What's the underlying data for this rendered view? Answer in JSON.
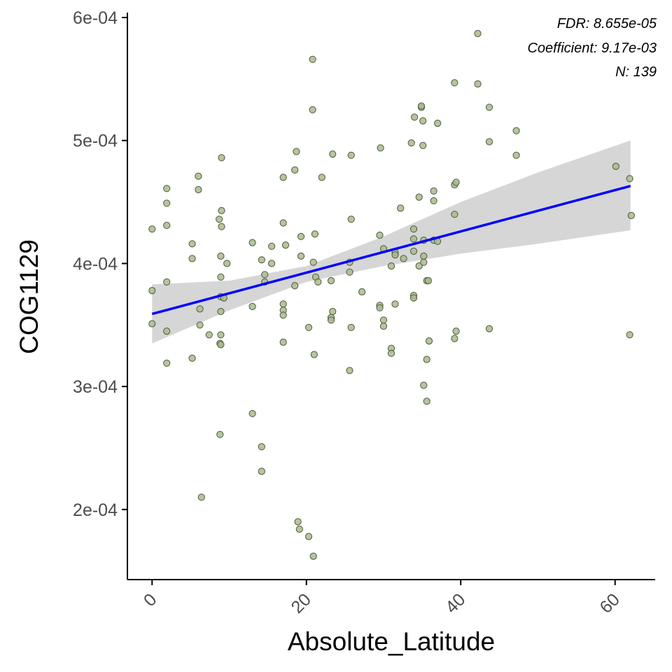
{
  "chart_data": {
    "type": "scatter",
    "title": "",
    "xlabel": "Absolute_Latitude",
    "ylabel": "COG1129",
    "xlim": [
      -3.2,
      65.2
    ],
    "ylim": [
      0.000143,
      0.000604
    ],
    "x_ticks": [
      0,
      20,
      40,
      60
    ],
    "x_tick_labels": [
      "0",
      "20",
      "40",
      "60"
    ],
    "y_ticks": [
      0.0002,
      0.0003,
      0.0004,
      0.0005,
      0.0006
    ],
    "y_tick_labels": [
      "2e-04",
      "3e-04",
      "4e-04",
      "5e-04",
      "6e-04"
    ],
    "grid": false,
    "annotations": [
      "FDR: 8.655e-05",
      "Coefficient: 9.17e-03",
      "N: 139"
    ],
    "point_color": "#a9ba8f",
    "point_edge_color": "#4d5a3b",
    "trend_color": "#0000ff",
    "band_color": "#d6d6d6",
    "trend_line": {
      "x": [
        0,
        62
      ],
      "y": [
        0.000359,
        0.000463
      ]
    },
    "confidence_band": {
      "x": [
        0,
        10,
        20,
        30,
        40,
        50,
        62
      ],
      "lower": [
        0.000335,
        0.000362,
        0.000385,
        0.000398,
        0.000408,
        0.000416,
        0.000427
      ],
      "upper": [
        0.000383,
        0.000386,
        0.000398,
        0.000422,
        0.00045,
        0.000474,
        0.0005
      ]
    },
    "points": [
      [
        0.0,
        0.000428
      ],
      [
        0.0,
        0.000378
      ],
      [
        0.0,
        0.000351
      ],
      [
        1.9,
        0.000461
      ],
      [
        1.9,
        0.000449
      ],
      [
        1.9,
        0.000431
      ],
      [
        1.9,
        0.000385
      ],
      [
        1.9,
        0.000345
      ],
      [
        1.9,
        0.000319
      ],
      [
        5.2,
        0.000416
      ],
      [
        5.2,
        0.000404
      ],
      [
        5.2,
        0.000323
      ],
      [
        6.0,
        0.000471
      ],
      [
        6.0,
        0.00046
      ],
      [
        6.2,
        0.000363
      ],
      [
        6.2,
        0.00035
      ],
      [
        6.4,
        0.00021
      ],
      [
        7.4,
        0.000342
      ],
      [
        8.7,
        0.000436
      ],
      [
        8.8,
        0.000335
      ],
      [
        8.8,
        0.000261
      ],
      [
        8.9,
        0.000406
      ],
      [
        8.9,
        0.000389
      ],
      [
        8.9,
        0.000373
      ],
      [
        8.9,
        0.000361
      ],
      [
        8.9,
        0.000342
      ],
      [
        8.9,
        0.000334
      ],
      [
        9.0,
        0.000486
      ],
      [
        9.0,
        0.000443
      ],
      [
        9.0,
        0.00043
      ],
      [
        9.3,
        0.000372
      ],
      [
        9.7,
        0.0004
      ],
      [
        13.0,
        0.000417
      ],
      [
        13.0,
        0.000365
      ],
      [
        13.0,
        0.000278
      ],
      [
        14.2,
        0.000403
      ],
      [
        14.2,
        0.000251
      ],
      [
        14.2,
        0.000231
      ],
      [
        14.6,
        0.000391
      ],
      [
        14.6,
        0.000385
      ],
      [
        15.5,
        0.000414
      ],
      [
        15.5,
        0.0004
      ],
      [
        17.0,
        0.00047
      ],
      [
        17.0,
        0.000433
      ],
      [
        17.0,
        0.000367
      ],
      [
        17.0,
        0.000362
      ],
      [
        17.0,
        0.000358
      ],
      [
        17.0,
        0.000336
      ],
      [
        17.3,
        0.000415
      ],
      [
        18.5,
        0.000476
      ],
      [
        18.5,
        0.000382
      ],
      [
        18.7,
        0.000491
      ],
      [
        18.9,
        0.00019
      ],
      [
        19.1,
        0.000184
      ],
      [
        19.3,
        0.000422
      ],
      [
        19.3,
        0.000406
      ],
      [
        20.3,
        0.000178
      ],
      [
        20.3,
        0.000348
      ],
      [
        20.8,
        0.000566
      ],
      [
        20.8,
        0.000525
      ],
      [
        20.9,
        0.000162
      ],
      [
        20.9,
        0.000401
      ],
      [
        21.0,
        0.000326
      ],
      [
        21.1,
        0.000424
      ],
      [
        21.2,
        0.000389
      ],
      [
        21.5,
        0.000385
      ],
      [
        22.0,
        0.00047
      ],
      [
        23.2,
        0.000386
      ],
      [
        23.2,
        0.000356
      ],
      [
        23.2,
        0.000354
      ],
      [
        23.4,
        0.000361
      ],
      [
        23.4,
        0.000489
      ],
      [
        25.6,
        0.000401
      ],
      [
        25.6,
        0.000393
      ],
      [
        25.6,
        0.000313
      ],
      [
        25.8,
        0.000488
      ],
      [
        25.8,
        0.000436
      ],
      [
        25.8,
        0.000348
      ],
      [
        27.2,
        0.000377
      ],
      [
        29.5,
        0.000423
      ],
      [
        29.5,
        0.000366
      ],
      [
        29.5,
        0.000364
      ],
      [
        29.6,
        0.000494
      ],
      [
        30.0,
        0.000412
      ],
      [
        30.0,
        0.000354
      ],
      [
        30.0,
        0.000349
      ],
      [
        31.0,
        0.000398
      ],
      [
        31.0,
        0.000331
      ],
      [
        31.0,
        0.000327
      ],
      [
        31.5,
        0.000409
      ],
      [
        31.5,
        0.000407
      ],
      [
        31.5,
        0.000367
      ],
      [
        32.2,
        0.000445
      ],
      [
        32.6,
        0.000404
      ],
      [
        33.6,
        0.000498
      ],
      [
        33.9,
        0.000428
      ],
      [
        33.9,
        0.00042
      ],
      [
        33.9,
        0.00041
      ],
      [
        33.9,
        0.000374
      ],
      [
        33.9,
        0.000372
      ],
      [
        34.0,
        0.000519
      ],
      [
        34.6,
        0.000454
      ],
      [
        34.6,
        0.000398
      ],
      [
        34.9,
        0.000527
      ],
      [
        34.9,
        0.000528
      ],
      [
        35.1,
        0.000516
      ],
      [
        35.1,
        0.000496
      ],
      [
        35.2,
        0.000419
      ],
      [
        35.2,
        0.000406
      ],
      [
        35.2,
        0.000401
      ],
      [
        35.2,
        0.000301
      ],
      [
        35.6,
        0.000386
      ],
      [
        35.6,
        0.000322
      ],
      [
        35.6,
        0.000288
      ],
      [
        35.8,
        0.000386
      ],
      [
        35.9,
        0.000337
      ],
      [
        36.5,
        0.000459
      ],
      [
        36.5,
        0.000451
      ],
      [
        36.5,
        0.000419
      ],
      [
        37.0,
        0.000514
      ],
      [
        37.0,
        0.000418
      ],
      [
        39.2,
        0.000547
      ],
      [
        39.2,
        0.000464
      ],
      [
        39.2,
        0.00044
      ],
      [
        39.2,
        0.000339
      ],
      [
        39.4,
        0.000466
      ],
      [
        39.4,
        0.000345
      ],
      [
        42.2,
        0.000587
      ],
      [
        42.2,
        0.000546
      ],
      [
        43.7,
        0.000527
      ],
      [
        43.7,
        0.000499
      ],
      [
        43.7,
        0.000347
      ],
      [
        47.2,
        0.000508
      ],
      [
        47.2,
        0.000488
      ],
      [
        60.1,
        0.000479
      ],
      [
        61.9,
        0.000469
      ],
      [
        61.9,
        0.000342
      ],
      [
        62.1,
        0.000439
      ]
    ]
  }
}
